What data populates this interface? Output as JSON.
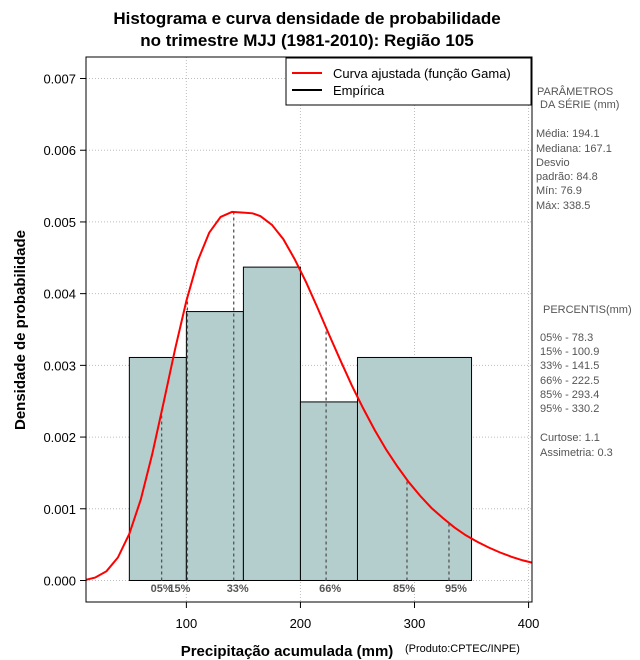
{
  "chart_data": {
    "type": "histogram",
    "title": [
      "Histograma e curva densidade de probabilidade",
      "no trimestre MJJ (1981-2010): Região 105"
    ],
    "xlabel": "Precipitação acumulada (mm)",
    "ylabel": "Densidade de probabilidade",
    "source_note": "(Produto:CPTEC/INPE)",
    "xlim": [
      12,
      403
    ],
    "ylim": [
      -0.0003,
      0.0073
    ],
    "x_ticks": [
      100,
      200,
      300,
      400
    ],
    "x_tick_labels": [
      "100",
      "200",
      "300",
      "400"
    ],
    "y_ticks": [
      0.0,
      0.001,
      0.002,
      0.003,
      0.004,
      0.005,
      0.006,
      0.007
    ],
    "y_tick_labels": [
      "0.000",
      "0.001",
      "0.002",
      "0.003",
      "0.004",
      "0.005",
      "0.006",
      "0.007"
    ],
    "grid": true,
    "bins": [
      {
        "start": 50,
        "end": 100,
        "density": 0.00311
      },
      {
        "start": 100,
        "end": 150,
        "density": 0.00375
      },
      {
        "start": 150,
        "end": 200,
        "density": 0.00437
      },
      {
        "start": 200,
        "end": 250,
        "density": 0.00249
      },
      {
        "start": 250,
        "end": 350,
        "density": 0.00311
      }
    ],
    "curve": {
      "name": "Curva ajustada (função Gama)",
      "color": "#ff0000",
      "x": [
        12,
        20,
        30,
        40,
        50,
        60,
        70,
        80,
        90,
        100,
        110,
        120,
        130,
        140,
        150,
        158,
        165,
        175,
        185,
        195,
        205,
        215,
        225,
        235,
        245,
        255,
        265,
        275,
        285,
        295,
        305,
        315,
        325,
        335,
        345,
        355,
        365,
        375,
        385,
        395,
        403
      ],
      "y": [
        1e-05,
        4e-05,
        0.00013,
        0.00032,
        0.00065,
        0.00113,
        0.00176,
        0.00248,
        0.00322,
        0.0039,
        0.00446,
        0.00485,
        0.00507,
        0.00514,
        0.00513,
        0.00512,
        0.00508,
        0.00496,
        0.00476,
        0.00448,
        0.00416,
        0.0038,
        0.00343,
        0.00307,
        0.00272,
        0.0024,
        0.0021,
        0.00183,
        0.00159,
        0.00137,
        0.00118,
        0.00101,
        0.00087,
        0.00074,
        0.00063,
        0.00054,
        0.00046,
        0.00039,
        0.00033,
        0.00028,
        0.00025
      ]
    },
    "legend": [
      {
        "label": "Curva ajustada (função Gama)",
        "color": "#ff0000"
      },
      {
        "label": "Empírica",
        "color": "#000000"
      }
    ],
    "legend_position": "top-right",
    "percentiles": [
      {
        "label": "05%",
        "value": 78.3
      },
      {
        "label": "15%",
        "value": 100.9
      },
      {
        "label": "33%",
        "value": 141.5
      },
      {
        "label": "66%",
        "value": 222.5
      },
      {
        "label": "85%",
        "value": 293.4
      },
      {
        "label": "95%",
        "value": 330.2
      }
    ]
  },
  "colors": {
    "bar_fill": "#b4cdcd",
    "curve": "#ff0000",
    "grid": "#bebebe",
    "percentile_line": "#555555"
  },
  "side_panel": {
    "params_title_1": "PARÂMETROS",
    "params_title_2": "DA SÉRIE (mm)",
    "media": "Média:  194.1",
    "mediana": "Mediana:  167.1",
    "desvio_1": "Desvio",
    "desvio_2": "padrão:  84.8",
    "min": "Mín:  76.9",
    "max": "Máx:  338.5",
    "percentis_title": "PERCENTIS(mm)",
    "p05": "05% -  78.3",
    "p15": "15% -  100.9",
    "p33": "33% -  141.5",
    "p66": "66% -  222.5",
    "p85": "85% -  293.4",
    "p95": "95% -  330.2",
    "curtose": "Curtose:  1.1",
    "assimetria": "Assimetria:  0.3"
  }
}
